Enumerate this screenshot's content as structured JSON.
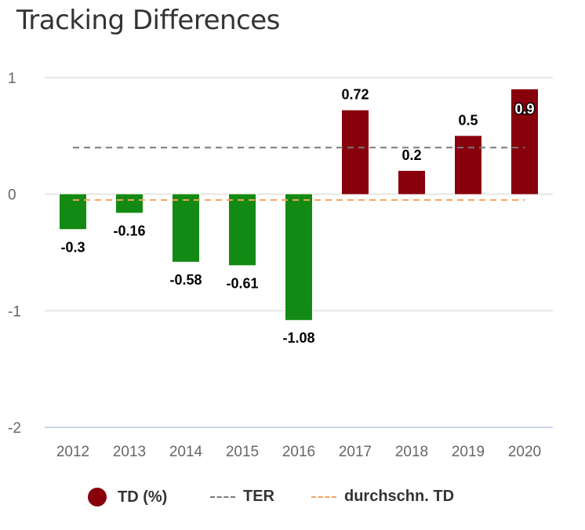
{
  "chart_data": {
    "type": "bar",
    "title": "Tracking Differences",
    "xlabel": "",
    "ylabel": "",
    "categories": [
      "2012",
      "2013",
      "2014",
      "2015",
      "2016",
      "2017",
      "2018",
      "2019",
      "2020"
    ],
    "series": [
      {
        "name": "TD (%)",
        "type": "bar",
        "values": [
          -0.3,
          -0.16,
          -0.58,
          -0.61,
          -1.08,
          0.72,
          0.2,
          0.5,
          0.9
        ],
        "positive_color": "#87000c",
        "negative_color": "#138a13",
        "data_labels": [
          "-0.3",
          "-0.16",
          "-0.58",
          "-0.61",
          "-1.08",
          "0.72",
          "0.2",
          "0.5",
          "0.9"
        ]
      },
      {
        "name": "TER",
        "type": "line",
        "style": "dashed",
        "color": "#7a7a7a",
        "values": [
          0.4,
          0.4,
          0.4,
          0.4,
          0.4,
          0.4,
          0.4,
          0.4,
          0.4
        ]
      },
      {
        "name": "durchschn. TD",
        "type": "line",
        "style": "dashed",
        "color": "#f7a35c",
        "values": [
          -0.05,
          -0.05,
          -0.05,
          -0.05,
          -0.05,
          -0.05,
          -0.05,
          -0.05,
          -0.05
        ]
      }
    ],
    "yticks": [
      "1",
      "0",
      "-1",
      "-2"
    ],
    "ytick_values": [
      1,
      0,
      -1,
      -2
    ],
    "ylim": [
      -2,
      1
    ],
    "grid": true,
    "legend": {
      "position": "bottom-center",
      "items": [
        {
          "label": "TD (%)",
          "symbol": "circle",
          "color": "#87000c"
        },
        {
          "label": "TER",
          "symbol": "dash",
          "color": "#7a7a7a"
        },
        {
          "label": "durchschn. TD",
          "symbol": "dash",
          "color": "#f7a35c"
        }
      ]
    }
  }
}
